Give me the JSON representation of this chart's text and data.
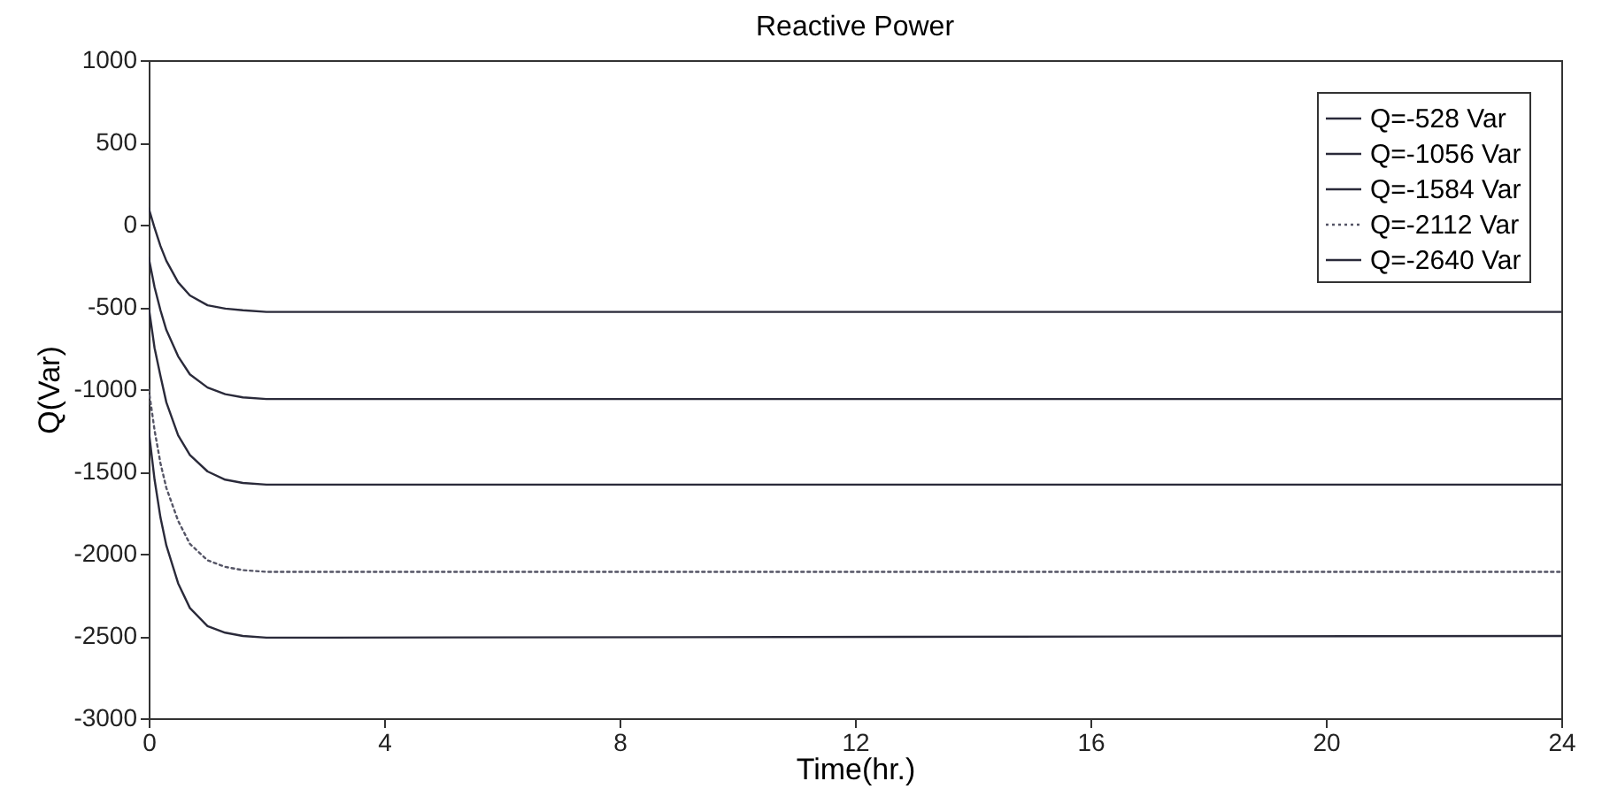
{
  "chart_data": {
    "type": "line",
    "title": "Reactive Power",
    "xlabel": "Time(hr.)",
    "ylabel": "Q(Var)",
    "x": [
      0,
      0.1,
      0.2,
      0.3,
      0.5,
      0.7,
      1,
      1.3,
      1.6,
      2,
      3,
      24
    ],
    "series": [
      {
        "name": "Q=-528 Var",
        "color": "#2a2a3a",
        "values": [
          100,
          -20,
          -130,
          -220,
          -350,
          -430,
          -490,
          -510,
          -520,
          -530,
          -530,
          -530
        ]
      },
      {
        "name": "Q=-1056 Var",
        "color": "#2a2a3a",
        "values": [
          -200,
          -380,
          -520,
          -640,
          -800,
          -910,
          -990,
          -1030,
          -1050,
          -1060,
          -1060,
          -1060
        ]
      },
      {
        "name": "Q=-1584 Var",
        "color": "#2a2a3a",
        "values": [
          -500,
          -750,
          -920,
          -1080,
          -1280,
          -1400,
          -1500,
          -1550,
          -1570,
          -1580,
          -1580,
          -1580
        ]
      },
      {
        "name": "Q=-2112 Var",
        "color": "#555566",
        "line_style": "dotted",
        "values": [
          -1000,
          -1250,
          -1450,
          -1600,
          -1800,
          -1940,
          -2040,
          -2080,
          -2100,
          -2110,
          -2110,
          -2110
        ]
      },
      {
        "name": "Q=-2640 Var",
        "color": "#2a2a3a",
        "values": [
          -1250,
          -1550,
          -1780,
          -1950,
          -2180,
          -2330,
          -2440,
          -2480,
          -2500,
          -2510,
          -2510,
          -2500
        ]
      }
    ],
    "xlim": [
      0,
      24
    ],
    "xticks": [
      0,
      4,
      8,
      12,
      16,
      20,
      24
    ],
    "ylim": [
      -3000,
      1000
    ],
    "yticks": [
      -3000,
      -2500,
      -2000,
      -1500,
      -1000,
      -500,
      0,
      500,
      1000
    ],
    "grid": false,
    "legend": "top right",
    "line_style": "solid"
  }
}
